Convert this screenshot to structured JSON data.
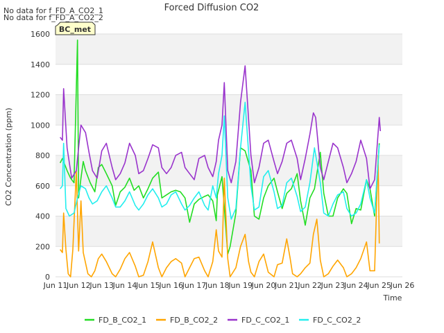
{
  "chart_data": {
    "type": "line",
    "title": "Forced Diffusion CO2",
    "xlabel": "Time",
    "ylabel": "CO2 Concentration (ppm)",
    "ylim": [
      0,
      1600
    ],
    "xlim": [
      11,
      26
    ],
    "y_ticks": [
      0,
      200,
      400,
      600,
      800,
      1000,
      1200,
      1400,
      1600
    ],
    "x_ticks": [
      {
        "v": 11,
        "label": "Jun 11"
      },
      {
        "v": 12,
        "label": "Jun 12"
      },
      {
        "v": 13,
        "label": "Jun 13"
      },
      {
        "v": 14,
        "label": "Jun 14"
      },
      {
        "v": 15,
        "label": "Jun 15"
      },
      {
        "v": 16,
        "label": "Jun 16"
      },
      {
        "v": 17,
        "label": "Jun 17"
      },
      {
        "v": 18,
        "label": "Jun 18"
      },
      {
        "v": 19,
        "label": "Jun 19"
      },
      {
        "v": 20,
        "label": "Jun 20"
      },
      {
        "v": 21,
        "label": "Jun 21"
      },
      {
        "v": 22,
        "label": "Jun 22"
      },
      {
        "v": 23,
        "label": "Jun 23"
      },
      {
        "v": 24,
        "label": "Jun 24"
      },
      {
        "v": 25,
        "label": "Jun 25"
      },
      {
        "v": 26,
        "label": "Jun 26"
      }
    ],
    "grid": true,
    "legend_position": "bottom",
    "notes": [
      "No data for f_FD_A_CO2_1",
      "No data for f_FD_A_CO2_2"
    ],
    "badge": "BC_met",
    "series": [
      {
        "name": "FD_B_CO2_1",
        "color": "#22dd22",
        "x": [
          11.2,
          11.3,
          11.5,
          11.65,
          11.8,
          11.95,
          12.0,
          12.1,
          12.2,
          12.3,
          12.5,
          12.7,
          12.85,
          13.0,
          13.2,
          13.45,
          13.6,
          13.8,
          14.0,
          14.2,
          14.4,
          14.6,
          14.8,
          15.0,
          15.2,
          15.45,
          15.6,
          15.8,
          16.0,
          16.2,
          16.4,
          16.6,
          16.8,
          17.0,
          17.2,
          17.45,
          17.6,
          17.8,
          17.95,
          18.0,
          18.2,
          18.45,
          18.55,
          18.8,
          19.0,
          19.2,
          19.45,
          19.6,
          19.8,
          20.0,
          20.2,
          20.45,
          20.6,
          20.8,
          21.0,
          21.2,
          21.45,
          21.6,
          21.8,
          22.0,
          22.2,
          22.45,
          22.6,
          22.8,
          23.0,
          23.2,
          23.45,
          23.6,
          23.8,
          24.0,
          24.2,
          24.45,
          24.6,
          24.8,
          25.0
        ],
        "y": [
          750,
          780,
          700,
          650,
          620,
          1560,
          520,
          650,
          760,
          700,
          620,
          560,
          720,
          740,
          680,
          600,
          470,
          560,
          590,
          650,
          570,
          600,
          520,
          580,
          650,
          690,
          520,
          540,
          560,
          570,
          560,
          520,
          360,
          480,
          510,
          530,
          540,
          500,
          370,
          540,
          660,
          150,
          200,
          420,
          850,
          830,
          700,
          400,
          380,
          520,
          600,
          650,
          560,
          450,
          550,
          580,
          680,
          500,
          340,
          520,
          580,
          820,
          550,
          400,
          400,
          520,
          580,
          550,
          350,
          450,
          440,
          640,
          580,
          400,
          880
        ]
      },
      {
        "name": "FD_B_CO2_2",
        "color": "#ffa500",
        "x": [
          11.2,
          11.3,
          11.35,
          11.45,
          11.55,
          11.65,
          11.75,
          11.9,
          12.0,
          12.1,
          12.2,
          12.4,
          12.55,
          12.7,
          12.85,
          13.0,
          13.2,
          13.45,
          13.6,
          13.8,
          14.0,
          14.2,
          14.45,
          14.6,
          14.8,
          15.0,
          15.2,
          15.45,
          15.6,
          15.8,
          16.0,
          16.2,
          16.45,
          16.6,
          16.8,
          17.0,
          17.2,
          17.45,
          17.6,
          17.8,
          17.95,
          18.05,
          18.2,
          18.3,
          18.45,
          18.55,
          18.8,
          19.0,
          19.2,
          19.35,
          19.45,
          19.6,
          19.8,
          20.0,
          20.2,
          20.45,
          20.6,
          20.8,
          21.0,
          21.15,
          21.25,
          21.45,
          21.6,
          21.8,
          22.0,
          22.15,
          22.3,
          22.45,
          22.6,
          22.8,
          23.0,
          23.2,
          23.45,
          23.6,
          23.8,
          24.0,
          24.2,
          24.45,
          24.6,
          24.8,
          24.95,
          25.0
        ],
        "y": [
          180,
          160,
          420,
          180,
          20,
          0,
          180,
          700,
          170,
          500,
          160,
          20,
          0,
          40,
          120,
          150,
          100,
          20,
          0,
          50,
          120,
          160,
          70,
          0,
          10,
          100,
          230,
          60,
          0,
          60,
          100,
          120,
          90,
          0,
          60,
          120,
          130,
          40,
          0,
          100,
          310,
          170,
          130,
          650,
          120,
          0,
          60,
          200,
          280,
          100,
          30,
          0,
          100,
          150,
          30,
          0,
          80,
          90,
          250,
          120,
          20,
          0,
          20,
          60,
          90,
          280,
          380,
          110,
          0,
          20,
          70,
          110,
          60,
          0,
          20,
          60,
          120,
          230,
          40,
          40,
          800,
          220
        ]
      },
      {
        "name": "FD_C_CO2_1",
        "color": "#9933cc",
        "x": [
          11.2,
          11.3,
          11.35,
          11.5,
          11.7,
          11.9,
          12.0,
          12.1,
          12.3,
          12.45,
          12.6,
          12.8,
          13.0,
          13.2,
          13.45,
          13.6,
          13.8,
          14.0,
          14.2,
          14.45,
          14.6,
          14.8,
          15.0,
          15.2,
          15.45,
          15.6,
          15.8,
          16.0,
          16.2,
          16.45,
          16.6,
          16.8,
          17.0,
          17.2,
          17.45,
          17.6,
          17.8,
          17.95,
          18.05,
          18.2,
          18.3,
          18.45,
          18.6,
          18.8,
          19.0,
          19.2,
          19.45,
          19.6,
          19.8,
          20.0,
          20.2,
          20.45,
          20.6,
          20.8,
          21.0,
          21.2,
          21.45,
          21.6,
          21.8,
          22.0,
          22.15,
          22.25,
          22.45,
          22.6,
          22.8,
          23.0,
          23.2,
          23.45,
          23.6,
          23.8,
          24.0,
          24.2,
          24.45,
          24.6,
          24.8,
          25.0,
          25.05
        ],
        "y": [
          920,
          900,
          1240,
          850,
          650,
          700,
          850,
          1000,
          950,
          820,
          700,
          650,
          830,
          880,
          720,
          640,
          680,
          750,
          880,
          800,
          680,
          700,
          780,
          870,
          850,
          720,
          680,
          720,
          800,
          820,
          720,
          680,
          640,
          780,
          800,
          720,
          660,
          760,
          900,
          1000,
          1280,
          700,
          620,
          760,
          1150,
          1390,
          800,
          620,
          720,
          880,
          900,
          760,
          680,
          760,
          880,
          900,
          780,
          640,
          780,
          940,
          1080,
          1050,
          720,
          640,
          760,
          880,
          850,
          720,
          620,
          680,
          760,
          900,
          780,
          580,
          640,
          1050,
          960
        ]
      },
      {
        "name": "FD_C_CO2_2",
        "color": "#22eeee",
        "x": [
          11.2,
          11.3,
          11.35,
          11.45,
          11.6,
          11.8,
          11.95,
          12.1,
          12.3,
          12.45,
          12.6,
          12.8,
          13.0,
          13.2,
          13.45,
          13.6,
          13.8,
          14.0,
          14.2,
          14.45,
          14.6,
          14.8,
          15.0,
          15.2,
          15.45,
          15.6,
          15.8,
          16.0,
          16.2,
          16.45,
          16.6,
          16.8,
          17.0,
          17.2,
          17.45,
          17.6,
          17.8,
          17.95,
          18.05,
          18.2,
          18.3,
          18.45,
          18.6,
          18.8,
          19.0,
          19.2,
          19.45,
          19.6,
          19.8,
          20.0,
          20.2,
          20.45,
          20.6,
          20.8,
          21.0,
          21.2,
          21.45,
          21.6,
          21.8,
          22.0,
          22.2,
          22.45,
          22.6,
          22.8,
          23.0,
          23.2,
          23.45,
          23.6,
          23.8,
          24.0,
          24.2,
          24.45,
          24.6,
          24.8,
          25.0
        ],
        "y": [
          580,
          600,
          880,
          450,
          400,
          420,
          520,
          600,
          580,
          520,
          480,
          500,
          560,
          600,
          520,
          460,
          460,
          500,
          560,
          470,
          440,
          480,
          540,
          580,
          520,
          460,
          480,
          540,
          560,
          480,
          440,
          470,
          520,
          560,
          470,
          440,
          600,
          520,
          680,
          800,
          1060,
          520,
          380,
          450,
          850,
          1150,
          600,
          440,
          460,
          660,
          700,
          560,
          450,
          470,
          620,
          650,
          530,
          430,
          460,
          620,
          850,
          620,
          420,
          400,
          480,
          540,
          560,
          450,
          400,
          420,
          480,
          640,
          520,
          420,
          870
        ]
      }
    ]
  }
}
